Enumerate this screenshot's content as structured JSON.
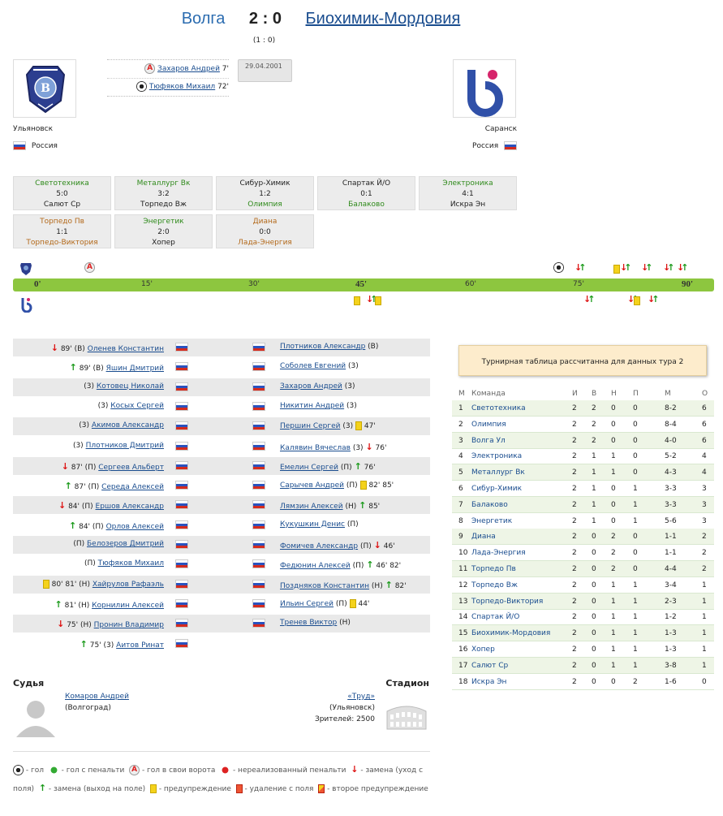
{
  "match": {
    "home": "Волга",
    "score": "2 : 0",
    "away": "Биохимик-Мордовия",
    "halftime": "(1 : 0)",
    "date": "29.04.2001"
  },
  "home_team": {
    "city": "Ульяновск",
    "country": "Россия"
  },
  "away_team": {
    "city": "Саранск",
    "country": "Россия"
  },
  "goals": [
    {
      "player": "Захаров Андрей",
      "minute": "7'",
      "type": "own-goal"
    },
    {
      "player": "Тюфяков Михаил",
      "minute": "72'",
      "type": "goal"
    }
  ],
  "round_results": [
    {
      "home": "Светотехника",
      "score": "5:0",
      "away": "Салют Ср",
      "winner": "home"
    },
    {
      "home": "Металлург Вк",
      "score": "3:2",
      "away": "Торпедо Вж",
      "winner": "home"
    },
    {
      "home": "Сибур-Химик",
      "score": "1:2",
      "away": "Олимпия",
      "winner": "away"
    },
    {
      "home": "Спартак Й/О",
      "score": "0:1",
      "away": "Балаково",
      "winner": "away"
    },
    {
      "home": "Электроника",
      "score": "4:1",
      "away": "Искра Эн",
      "winner": "home"
    },
    {
      "home": "Торпедо Пв",
      "score": "1:1",
      "away": "Торпедо-Виктория",
      "winner": "draw"
    },
    {
      "home": "Энергетик",
      "score": "2:0",
      "away": "Хопер",
      "winner": "home"
    },
    {
      "home": "Диана",
      "score": "0:0",
      "away": "Лада-Энергия",
      "winner": "draw"
    }
  ],
  "timeline": {
    "ticks": [
      "0'",
      "15'",
      "30'",
      "45'",
      "60'",
      "75'",
      "90'"
    ]
  },
  "lineups": [
    {
      "l": {
        "pre": "89' (В)",
        "name": "Оленев Константин",
        "post": ""
      },
      "r": {
        "pre": "",
        "name": "Плотников Александр",
        "post": "(В)"
      }
    },
    {
      "l": {
        "pre": "89' (В)",
        "name": "Яшин Дмитрий",
        "post": ""
      },
      "r": {
        "pre": "",
        "name": "Соболев Евгений",
        "post": "(3)"
      }
    },
    {
      "l": {
        "pre": "(3)",
        "name": "Котовец Николай",
        "post": ""
      },
      "r": {
        "pre": "",
        "name": "Захаров Андрей",
        "post": "(3)"
      }
    },
    {
      "l": {
        "pre": "(3)",
        "name": "Косых Сергей",
        "post": ""
      },
      "r": {
        "pre": "",
        "name": "Никитин Андрей",
        "post": "(3)"
      }
    },
    {
      "l": {
        "pre": "(3)",
        "name": "Акимов Александр",
        "post": ""
      },
      "r": {
        "pre": "",
        "name": "Першин Сергей",
        "post": "(3)"
      }
    },
    {
      "l": {
        "pre": "(3)",
        "name": "Плотников Дмитрий",
        "post": ""
      },
      "r": {
        "pre": "",
        "name": "Калявин Вячеслав",
        "post": "(3)"
      }
    },
    {
      "l": {
        "pre": "87' (П)",
        "name": "Сергеев Альберт",
        "post": ""
      },
      "r": {
        "pre": "",
        "name": "Емелин Сергей",
        "post": "(П)"
      }
    },
    {
      "l": {
        "pre": "87' (П)",
        "name": "Середа Алексей",
        "post": ""
      },
      "r": {
        "pre": "",
        "name": "Сарычев Андрей",
        "post": "(П)"
      }
    },
    {
      "l": {
        "pre": "84' (П)",
        "name": "Ершов Александр",
        "post": ""
      },
      "r": {
        "pre": "",
        "name": "Лямзин Алексей",
        "post": "(Н)"
      }
    },
    {
      "l": {
        "pre": "84' (П)",
        "name": "Орлов Алексей",
        "post": ""
      },
      "r": {
        "pre": "",
        "name": "Кукушкин Денис",
        "post": "(П)"
      }
    },
    {
      "l": {
        "pre": "(П)",
        "name": "Белозеров Дмитрий",
        "post": ""
      },
      "r": {
        "pre": "",
        "name": "Фомичев Александр",
        "post": "(П)"
      }
    },
    {
      "l": {
        "pre": "(П)",
        "name": "Тюфяков Михаил",
        "post": ""
      },
      "r": {
        "pre": "",
        "name": "Федюнин Алексей",
        "post": "(П)"
      }
    },
    {
      "l": {
        "pre": "80' 81' (Н)",
        "name": "Хайрулов Рафаэль",
        "post": ""
      },
      "r": {
        "pre": "",
        "name": "Поздняков Константин",
        "post": "(Н)"
      }
    },
    {
      "l": {
        "pre": "81' (Н)",
        "name": "Корнилин Алексей",
        "post": ""
      },
      "r": {
        "pre": "",
        "name": "Ильин Сергей",
        "post": "(П)"
      }
    },
    {
      "l": {
        "pre": "75' (Н)",
        "name": "Пронин Владимир",
        "post": ""
      },
      "r": {
        "pre": "",
        "name": "Тренев Виктор",
        "post": "(Н)"
      }
    },
    {
      "l": {
        "pre": "75' (3)",
        "name": "Аитов Ринат",
        "post": ""
      },
      "r": null
    }
  ],
  "right_events": [
    "",
    "",
    "",
    "",
    "47'",
    "76'",
    "76'",
    "82'  85'",
    "85'",
    "",
    "46'",
    "46'  82'",
    "82'",
    "44'",
    "",
    ""
  ],
  "standings": {
    "note": "Турнирная таблица рассчитанна для данных тура 2",
    "headers": [
      "М",
      "Команда",
      "И",
      "В",
      "Н",
      "П",
      "М",
      "О"
    ],
    "rows": [
      [
        "1",
        "Светотехника",
        "2",
        "2",
        "0",
        "0",
        "8-2",
        "6"
      ],
      [
        "2",
        "Олимпия",
        "2",
        "2",
        "0",
        "0",
        "8-4",
        "6"
      ],
      [
        "3",
        "Волга Ул",
        "2",
        "2",
        "0",
        "0",
        "4-0",
        "6"
      ],
      [
        "4",
        "Электроника",
        "2",
        "1",
        "1",
        "0",
        "5-2",
        "4"
      ],
      [
        "5",
        "Металлург Вк",
        "2",
        "1",
        "1",
        "0",
        "4-3",
        "4"
      ],
      [
        "6",
        "Сибур-Химик",
        "2",
        "1",
        "0",
        "1",
        "3-3",
        "3"
      ],
      [
        "7",
        "Балаково",
        "2",
        "1",
        "0",
        "1",
        "3-3",
        "3"
      ],
      [
        "8",
        "Энергетик",
        "2",
        "1",
        "0",
        "1",
        "5-6",
        "3"
      ],
      [
        "9",
        "Диана",
        "2",
        "0",
        "2",
        "0",
        "1-1",
        "2"
      ],
      [
        "10",
        "Лада-Энергия",
        "2",
        "0",
        "2",
        "0",
        "1-1",
        "2"
      ],
      [
        "11",
        "Торпедо Пв",
        "2",
        "0",
        "2",
        "0",
        "4-4",
        "2"
      ],
      [
        "12",
        "Торпедо Вж",
        "2",
        "0",
        "1",
        "1",
        "3-4",
        "1"
      ],
      [
        "13",
        "Торпедо-Виктория",
        "2",
        "0",
        "1",
        "1",
        "2-3",
        "1"
      ],
      [
        "14",
        "Спартак Й/О",
        "2",
        "0",
        "1",
        "1",
        "1-2",
        "1"
      ],
      [
        "15",
        "Биохимик-Мордовия",
        "2",
        "0",
        "1",
        "1",
        "1-3",
        "1"
      ],
      [
        "16",
        "Хопер",
        "2",
        "0",
        "1",
        "1",
        "1-3",
        "1"
      ],
      [
        "17",
        "Салют Ср",
        "2",
        "0",
        "1",
        "1",
        "3-8",
        "1"
      ],
      [
        "18",
        "Искра Эн",
        "2",
        "0",
        "0",
        "2",
        "1-6",
        "0"
      ]
    ]
  },
  "referee": {
    "title": "Судья",
    "name": "Комаров Андрей",
    "city": "(Волгоград)"
  },
  "stadium": {
    "title": "Стадион",
    "name": "«Труд»",
    "city": "(Ульяновск)",
    "attendance": "Зрителей: 2500"
  },
  "legend": {
    "goal": "- гол",
    "penalty": "- гол с пенальти",
    "own": "- гол в свои ворота",
    "missed": "- нереализованный пенальти",
    "sub_out": "- замена (уход с поля)",
    "sub_in": "- замена (выход на поле)",
    "yellow": "- предупреждение",
    "red": "- удаление с поля",
    "second": "- второе предупреждение"
  }
}
